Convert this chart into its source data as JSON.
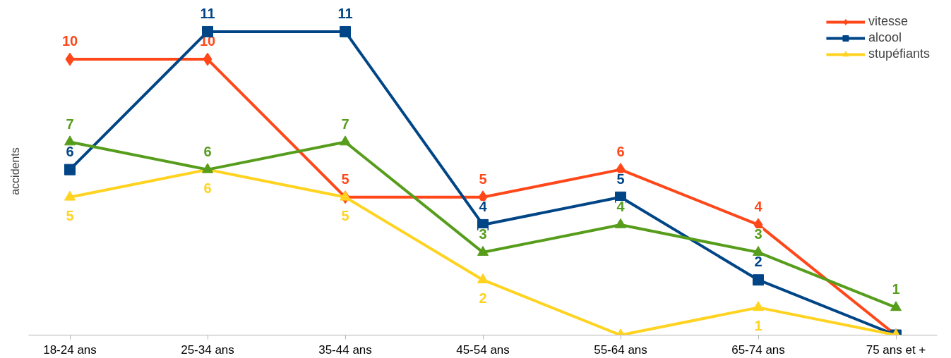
{
  "chart_data": {
    "type": "line",
    "ylabel": "accidents",
    "categories": [
      "18-24 ans",
      "25-34 ans",
      "35-44 ans",
      "45-54 ans",
      "55-64 ans",
      "65-74 ans",
      "75 ans et +"
    ],
    "series": [
      {
        "name": "vitesse",
        "color": "#ff4719",
        "marker": "diamond",
        "values": [
          10,
          10,
          5,
          5,
          6,
          4,
          0
        ],
        "value_labels": [
          "10",
          "10",
          "5",
          "5",
          "6",
          "4",
          null
        ]
      },
      {
        "name": "alcool",
        "color": "#004586",
        "marker": "square",
        "values": [
          6,
          11,
          11,
          4,
          5,
          2,
          0
        ],
        "value_labels": [
          "6",
          "11",
          "11",
          "4",
          "5",
          "2",
          null
        ]
      },
      {
        "name": "stupéfiants",
        "color": "#ffd320",
        "marker": "triangle",
        "values": [
          5,
          6,
          5,
          2,
          0,
          1,
          0
        ],
        "value_labels": [
          "5",
          "6",
          "5",
          "2",
          null,
          "1",
          null
        ]
      },
      {
        "color": "#579d1c",
        "marker": "triangle",
        "values": [
          7,
          6,
          7,
          3,
          4,
          3,
          1
        ],
        "value_labels": [
          "7",
          "6",
          "7",
          "3",
          "4",
          "3",
          "1"
        ]
      }
    ],
    "tick_labels": "x",
    "grid": false,
    "legend": "top right"
  }
}
